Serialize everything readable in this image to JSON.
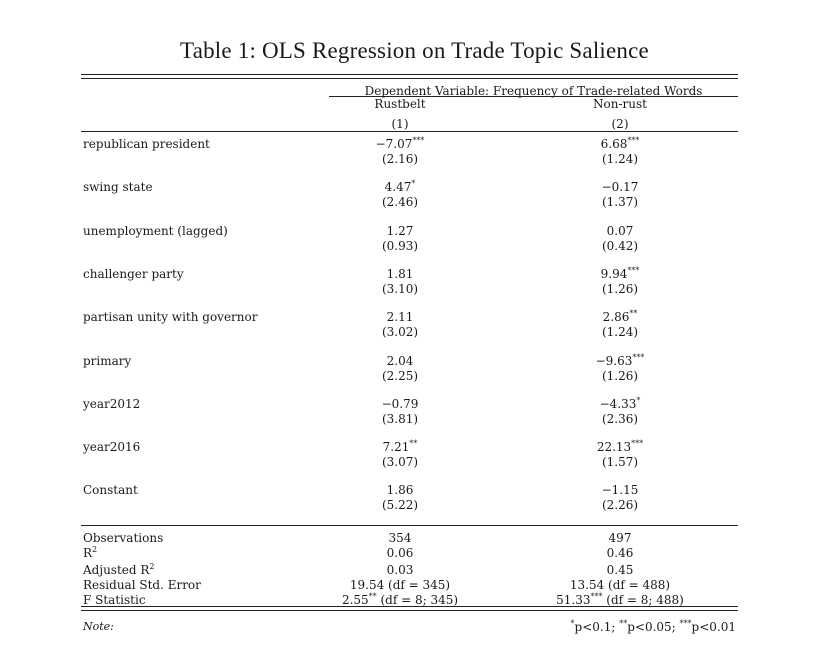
{
  "caption": "Table 1: OLS Regression on Trade Topic Salience",
  "header": {
    "dependent_variable": "Dependent Variable: Frequency of Trade-related Words",
    "columns": [
      {
        "name": "Rustbelt",
        "number": "(1)"
      },
      {
        "name": "Non-rust",
        "number": "(2)"
      }
    ]
  },
  "rows": [
    {
      "label": "republican president",
      "c1": {
        "coef": "−7.07",
        "stars": "***",
        "se": "(2.16)"
      },
      "c2": {
        "coef": "6.68",
        "stars": "***",
        "se": "(1.24)"
      }
    },
    {
      "label": "swing state",
      "c1": {
        "coef": "4.47",
        "stars": "*",
        "se": "(2.46)"
      },
      "c2": {
        "coef": "−0.17",
        "stars": "",
        "se": "(1.37)"
      }
    },
    {
      "label": "unemployment (lagged)",
      "c1": {
        "coef": "1.27",
        "stars": "",
        "se": "(0.93)"
      },
      "c2": {
        "coef": "0.07",
        "stars": "",
        "se": "(0.42)"
      }
    },
    {
      "label": "challenger party",
      "c1": {
        "coef": "1.81",
        "stars": "",
        "se": "(3.10)"
      },
      "c2": {
        "coef": "9.94",
        "stars": "***",
        "se": "(1.26)"
      }
    },
    {
      "label": "partisan unity with governor",
      "c1": {
        "coef": "2.11",
        "stars": "",
        "se": "(3.02)"
      },
      "c2": {
        "coef": "2.86",
        "stars": "**",
        "se": "(1.24)"
      }
    },
    {
      "label": "primary",
      "c1": {
        "coef": "2.04",
        "stars": "",
        "se": "(2.25)"
      },
      "c2": {
        "coef": "−9.63",
        "stars": "***",
        "se": "(1.26)"
      }
    },
    {
      "label": "year2012",
      "c1": {
        "coef": "−0.79",
        "stars": "",
        "se": "(3.81)"
      },
      "c2": {
        "coef": "−4.33",
        "stars": "*",
        "se": "(2.36)"
      }
    },
    {
      "label": "year2016",
      "c1": {
        "coef": "7.21",
        "stars": "**",
        "se": "(3.07)"
      },
      "c2": {
        "coef": "22.13",
        "stars": "***",
        "se": "(1.57)"
      }
    },
    {
      "label": "Constant",
      "c1": {
        "coef": "1.86",
        "stars": "",
        "se": "(5.22)"
      },
      "c2": {
        "coef": "−1.15",
        "stars": "",
        "se": "(2.26)"
      }
    }
  ],
  "stats": [
    {
      "label": "Observations",
      "sup": "",
      "c1": "354",
      "c1_sup": "",
      "c1_rest": "",
      "c2": "497",
      "c2_sup": "",
      "c2_rest": ""
    },
    {
      "label": "R",
      "sup": "2",
      "c1": "0.06",
      "c1_sup": "",
      "c1_rest": "",
      "c2": "0.46",
      "c2_sup": "",
      "c2_rest": ""
    },
    {
      "label": "Adjusted R",
      "sup": "2",
      "c1": "0.03",
      "c1_sup": "",
      "c1_rest": "",
      "c2": "0.45",
      "c2_sup": "",
      "c2_rest": ""
    },
    {
      "label": "Residual Std. Error",
      "sup": "",
      "c1": "19.54 (df = 345)",
      "c1_sup": "",
      "c1_rest": "",
      "c2": "13.54 (df = 488)",
      "c2_sup": "",
      "c2_rest": ""
    },
    {
      "label": "F Statistic",
      "sup": "",
      "c1": "2.55",
      "c1_sup": "**",
      "c1_rest": " (df = 8; 345)",
      "c2": "51.33",
      "c2_sup": "***",
      "c2_rest": " (df = 8; 488)"
    }
  ],
  "note": {
    "label": "Note:",
    "s1": "*",
    "t1": "p<0.1; ",
    "s2": "**",
    "t2": "p<0.05; ",
    "s3": "***",
    "t3": "p<0.01"
  }
}
